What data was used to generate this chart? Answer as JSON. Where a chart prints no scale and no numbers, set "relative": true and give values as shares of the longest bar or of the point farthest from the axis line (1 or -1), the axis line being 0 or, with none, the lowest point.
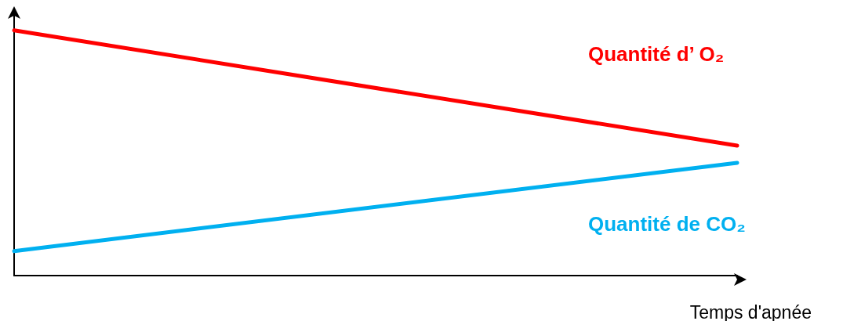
{
  "chart_data": {
    "type": "line",
    "relative": true,
    "xlabel": "Temps d'apnée",
    "categories": [
      null,
      null
    ],
    "series": [
      {
        "name": "Quantité d’ O₂",
        "color": "#ff0000",
        "values": [
          1,
          0.53
        ]
      },
      {
        "name": "Quantité de CO₂",
        "color": "#00b0f0",
        "values": [
          0.1,
          0.46
        ]
      }
    ],
    "grid": false,
    "legend": false,
    "marker": "none",
    "line_style": "solid"
  }
}
